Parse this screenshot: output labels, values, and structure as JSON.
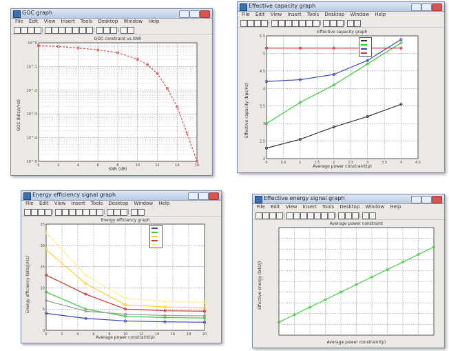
{
  "windows": [
    {
      "title": "GOC graph",
      "menu": [
        "File",
        "Edit",
        "View",
        "Insert",
        "Tools",
        "Desktop",
        "Window",
        "Help"
      ],
      "plot_title": "GOC constraint vs SNR",
      "xlabel": "SNR (dB)",
      "ylabel": "GOC (bits/s/Hz)"
    },
    {
      "title": "Effective capacity graph",
      "menu": [
        "File",
        "Edit",
        "View",
        "Insert",
        "Tools",
        "Desktop",
        "Window",
        "Help"
      ],
      "plot_title": "Effective capacity graph",
      "xlabel": "Average power constraint(p)",
      "ylabel": "Effective capacity (bps/Hz)"
    },
    {
      "title": "Energy efficiency signal graph",
      "menu": [
        "File",
        "Edit",
        "View",
        "Insert",
        "Tools",
        "Desktop",
        "Window",
        "Help"
      ],
      "plot_title": "Energy efficiency graph",
      "xlabel": "Average power constraint(p)",
      "ylabel": "Energy efficiency (bits/J/Hz)"
    },
    {
      "title": "Effective energy signal graph",
      "menu": [
        "File",
        "Edit",
        "View",
        "Insert",
        "Tools",
        "Desktop",
        "Window",
        "Help"
      ],
      "plot_title": "Average power constraint",
      "xlabel": "Average power constraint(p)",
      "ylabel": "Effective energy (bits/J)"
    }
  ],
  "chart_data": [
    {
      "type": "line",
      "title": "GOC constraint vs SNR",
      "xlabel": "SNR (dB)",
      "ylabel": "GOC (bits/s/Hz)",
      "xlim": [
        0,
        16
      ],
      "ylim_log10": [
        -5,
        0
      ],
      "yscale": "log",
      "x_ticks": [
        "0",
        "2",
        "4",
        "6",
        "8",
        "10",
        "12",
        "14",
        "16"
      ],
      "y_ticks": [
        "10^-5",
        "10^-4",
        "10^-3",
        "10^-2",
        "10^-1",
        "10^0"
      ],
      "grid": true,
      "series": [
        {
          "color": "#d05050",
          "dash": "3,2",
          "x": [
            0,
            2,
            4,
            6,
            8,
            10,
            11,
            12,
            13,
            14,
            15,
            16
          ],
          "y": [
            0.75,
            0.7,
            0.6,
            0.5,
            0.38,
            0.2,
            0.12,
            0.05,
            0.012,
            0.002,
            0.00015,
            1e-05
          ]
        }
      ]
    },
    {
      "type": "line",
      "title": "Effective capacity graph",
      "xlabel": "Average power constraint(p)",
      "ylabel": "Effective capacity (bps/Hz)",
      "xlim": [
        0,
        4.5
      ],
      "ylim": [
        2,
        5.5
      ],
      "x_ticks": [
        "0",
        "0.5",
        "1",
        "1.5",
        "2",
        "2.5",
        "3",
        "3.5",
        "4",
        "4.5"
      ],
      "y_ticks": [
        "2",
        "2.5",
        "3",
        "3.5",
        "4",
        "4.5",
        "5",
        "5.5"
      ],
      "grid": true,
      "legend_position": "top-right",
      "series": [
        {
          "color": "#333333",
          "x": [
            0,
            1,
            2,
            3,
            4
          ],
          "y": [
            2.3,
            2.55,
            2.9,
            3.2,
            3.55
          ]
        },
        {
          "color": "#33cc33",
          "x": [
            0,
            1,
            2,
            3,
            4
          ],
          "y": [
            3.0,
            3.6,
            4.1,
            4.7,
            5.3
          ]
        },
        {
          "color": "#3344bb",
          "x": [
            0,
            1,
            2,
            3,
            4
          ],
          "y": [
            4.2,
            4.25,
            4.4,
            4.8,
            5.4
          ]
        },
        {
          "color": "#d03030",
          "x": [
            0,
            1,
            2,
            3,
            4
          ],
          "y": [
            5.15,
            5.15,
            5.15,
            5.15,
            5.15
          ]
        }
      ]
    },
    {
      "type": "line",
      "title": "Energy efficiency graph",
      "xlabel": "Average power constraint(p)",
      "ylabel": "Energy efficiency (bits/J/Hz)",
      "xlim": [
        0,
        20
      ],
      "ylim": [
        0,
        25
      ],
      "x_ticks": [
        "0",
        "2",
        "4",
        "6",
        "8",
        "10",
        "12",
        "14",
        "16",
        "18",
        "20"
      ],
      "y_ticks": [
        "0",
        "5",
        "10",
        "15",
        "20",
        "25"
      ],
      "grid": true,
      "legend_position": "top-right",
      "series": [
        {
          "color": "#3344bb",
          "x": [
            0,
            5,
            10,
            15,
            20
          ],
          "y": [
            4,
            2.8,
            2.2,
            2.0,
            1.9
          ]
        },
        {
          "color": "#33cc33",
          "x": [
            0,
            5,
            10,
            15,
            20
          ],
          "y": [
            9,
            5,
            3.3,
            3.0,
            2.9
          ]
        },
        {
          "color": "#ffcc33",
          "x": [
            0,
            5,
            10,
            15,
            20
          ],
          "y": [
            19,
            11,
            6,
            5.5,
            5.3
          ]
        },
        {
          "color": "#cc3333",
          "x": [
            0,
            5,
            10,
            15,
            20
          ],
          "y": [
            13,
            8.5,
            5.0,
            4.6,
            4.5
          ]
        },
        {
          "color": "#999999",
          "x": [
            0,
            5,
            10,
            15,
            20
          ],
          "y": [
            7,
            4.5,
            3.8,
            3.5,
            3.4
          ]
        },
        {
          "color": "#ffee88",
          "x": [
            0,
            5,
            10,
            15,
            20
          ],
          "y": [
            23,
            13,
            7.5,
            6.8,
            6.6
          ]
        }
      ]
    },
    {
      "type": "line",
      "title": "Average power constraint",
      "xlabel": "Average power constraint(p)",
      "ylabel": "Effective energy (bits/J)",
      "xlim": [
        0,
        10
      ],
      "ylim": [
        0,
        10
      ],
      "grid": true,
      "series": [
        {
          "color": "#44cc44",
          "x": [
            0,
            1,
            2,
            3,
            4,
            5,
            6,
            7,
            8,
            9,
            10
          ],
          "y": [
            1.2,
            1.9,
            2.6,
            3.3,
            4.0,
            4.7,
            5.4,
            6.1,
            6.8,
            7.5,
            8.2
          ]
        }
      ]
    }
  ]
}
